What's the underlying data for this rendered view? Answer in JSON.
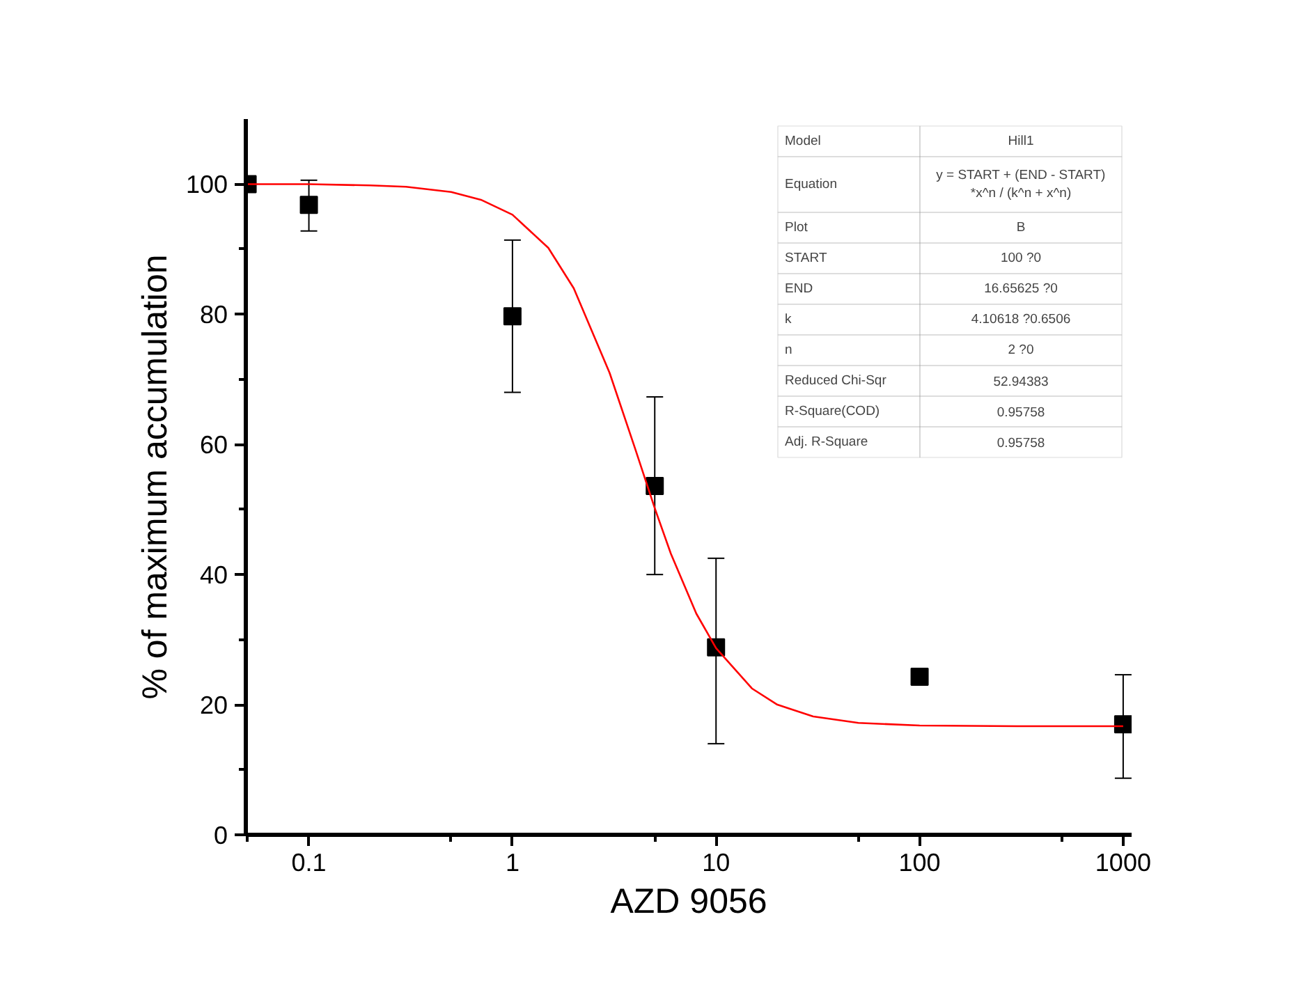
{
  "chart_data": {
    "type": "scatter",
    "xlabel": "AZD 9056",
    "ylabel": "% of maximum accumulation",
    "log": "x",
    "grid": false,
    "xlim": [
      0.049,
      1100
    ],
    "ylim": [
      0,
      110
    ],
    "xticks": [
      0.1,
      1,
      10,
      100,
      1000
    ],
    "yticks": [
      0,
      20,
      40,
      60,
      80,
      100
    ],
    "series": [
      {
        "marker": "square",
        "color": "#000000",
        "x": [
          0.05,
          0.1,
          1,
          5,
          10,
          100,
          1000
        ],
        "values": [
          100,
          96.8,
          79.7,
          53.6,
          28.8,
          24.3,
          17
        ],
        "errors": [
          null,
          [
            92.8,
            100.6
          ],
          [
            68,
            91.4
          ],
          [
            40,
            67.3
          ],
          [
            14,
            42.5
          ],
          null,
          [
            8.7,
            24.6
          ]
        ]
      },
      {
        "type": "line",
        "color": "#ff0000",
        "line_style": "solid",
        "x": [
          0.05,
          0.1,
          0.2,
          0.3,
          0.5,
          0.7,
          1,
          1.5,
          2,
          3,
          4,
          5,
          6,
          8,
          10,
          15,
          20,
          30,
          50,
          100,
          300,
          1000
        ],
        "values": [
          100,
          100,
          99.8,
          99.6,
          98.8,
          97.6,
          95.3,
          90.2,
          84,
          71,
          59.4,
          50.2,
          43.2,
          34,
          28.7,
          22.5,
          20,
          18.2,
          17.2,
          16.8,
          16.7,
          16.7
        ]
      }
    ],
    "annotations": [
      "Model",
      "Hill1",
      "Equation",
      "y = START + (END - START)\n*x^n / (k^n + x^n)",
      "Plot",
      "B",
      "START",
      "100 ?0",
      "END",
      "16.65625 ?0",
      "k",
      "4.10618 ?0.6506",
      "n",
      "2 ?0",
      "Reduced Chi-Sqr",
      "52.94383",
      "R-Square(COD)",
      "0.95758",
      "Adj. R-Square",
      "0.95758"
    ]
  }
}
